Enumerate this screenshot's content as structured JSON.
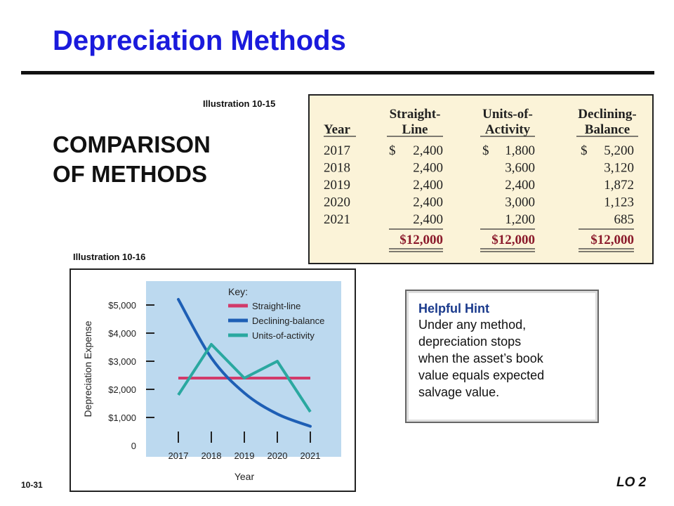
{
  "slide": {
    "title": "Depreciation Methods",
    "subheading_line1": "COMPARISON",
    "subheading_line2": "OF METHODS",
    "page_number": "10-31",
    "learning_objective": "LO 2",
    "title_color": "#1a1adc"
  },
  "table_illustration_label": "Illustration 10-15",
  "chart_illustration_label": "Illustration 10-16",
  "table": {
    "headers": [
      {
        "line1": "",
        "line2": "Year"
      },
      {
        "line1": "Straight-",
        "line2": "Line"
      },
      {
        "line1": "Units-of-",
        "line2": "Activity"
      },
      {
        "line1": "Declining-",
        "line2": "Balance"
      }
    ],
    "rows": [
      {
        "year": "2017",
        "straight_line": "$ 2,400",
        "units_of_activity": "$ 1,800",
        "declining_balance": "$ 5,200"
      },
      {
        "year": "2018",
        "straight_line": "2,400",
        "units_of_activity": "3,600",
        "declining_balance": "3,120"
      },
      {
        "year": "2019",
        "straight_line": "2,400",
        "units_of_activity": "2,400",
        "declining_balance": "1,872"
      },
      {
        "year": "2020",
        "straight_line": "2,400",
        "units_of_activity": "3,000",
        "declining_balance": "1,123"
      },
      {
        "year": "2021",
        "straight_line": "2,400",
        "units_of_activity": "1,200",
        "declining_balance": "685"
      }
    ],
    "totals": {
      "straight_line": "$12,000",
      "units_of_activity": "$12,000",
      "declining_balance": "$12,000"
    },
    "total_color": "#8b1a2b"
  },
  "chart_data": {
    "type": "line",
    "x": [
      "2017",
      "2018",
      "2019",
      "2020",
      "2021"
    ],
    "xlabel": "Year",
    "ylabel": "Depreciation Expense",
    "ylim": [
      0,
      5600
    ],
    "y_ticks": [
      {
        "value": 0,
        "label": "0"
      },
      {
        "value": 1000,
        "label": "$1,000"
      },
      {
        "value": 2000,
        "label": "$2,000"
      },
      {
        "value": 3000,
        "label": "$3,000"
      },
      {
        "value": 4000,
        "label": "$4,000"
      },
      {
        "value": 5000,
        "label": "$5,000"
      }
    ],
    "legend_title": "Key:",
    "legend_position": "top-right",
    "series": [
      {
        "name": "Straight-line",
        "color": "#d23a6a",
        "values": [
          2400,
          2400,
          2400,
          2400,
          2400
        ]
      },
      {
        "name": "Declining-balance",
        "color": "#1e5fb5",
        "values": [
          5200,
          3120,
          1872,
          1123,
          685
        ]
      },
      {
        "name": "Units-of-activity",
        "color": "#2aa8a0",
        "values": [
          1800,
          3600,
          2400,
          3000,
          1200
        ]
      }
    ],
    "plot_background": "#bcd9ef"
  },
  "hint": {
    "title": "Helpful Hint",
    "lines": [
      "Under any method,",
      "depreciation stops",
      "when the asset’s book",
      "value equals expected",
      "salvage value."
    ]
  }
}
